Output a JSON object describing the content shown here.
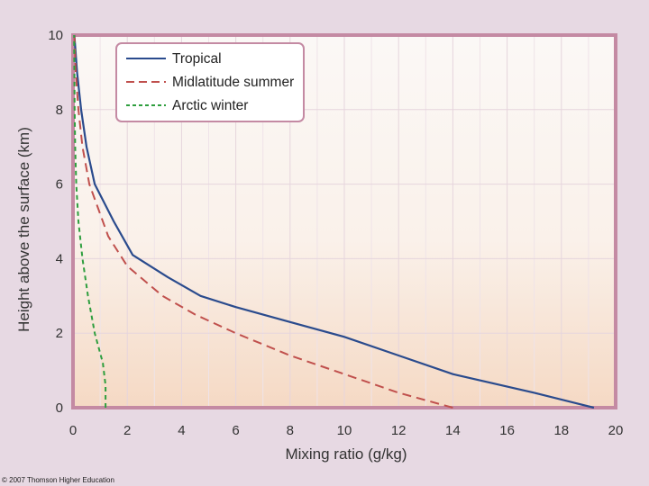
{
  "chart_data": {
    "type": "line",
    "title": "",
    "xlabel": "Mixing ratio (g/kg)",
    "ylabel": "Height above the surface (km)",
    "xlim": [
      0,
      20
    ],
    "ylim": [
      0,
      10
    ],
    "x_ticks": [
      "0",
      "2",
      "4",
      "6",
      "8",
      "10",
      "12",
      "14",
      "16",
      "18",
      "20"
    ],
    "y_ticks": [
      "0",
      "2",
      "4",
      "6",
      "8",
      "10"
    ],
    "grid": true,
    "legend_position": "top-left",
    "series": [
      {
        "name": "Tropical",
        "style": "solid",
        "color": "#2a4b8d",
        "points": [
          [
            19.2,
            0
          ],
          [
            17,
            0.4
          ],
          [
            14,
            0.9
          ],
          [
            12,
            1.4
          ],
          [
            10,
            1.9
          ],
          [
            8,
            2.3
          ],
          [
            6,
            2.7
          ],
          [
            4.7,
            3
          ],
          [
            3.5,
            3.5
          ],
          [
            2.2,
            4.1
          ],
          [
            1.5,
            5
          ],
          [
            0.8,
            6
          ],
          [
            0.5,
            7
          ],
          [
            0.3,
            8
          ],
          [
            0.15,
            9
          ],
          [
            0.05,
            10
          ]
        ]
      },
      {
        "name": "Midlatitude summer",
        "style": "dashed",
        "color": "#c0504d",
        "points": [
          [
            14,
            0
          ],
          [
            12,
            0.4
          ],
          [
            10,
            0.9
          ],
          [
            8,
            1.4
          ],
          [
            6,
            2
          ],
          [
            4.5,
            2.5
          ],
          [
            3.3,
            3
          ],
          [
            2,
            3.8
          ],
          [
            1.3,
            4.6
          ],
          [
            0.9,
            5.4
          ],
          [
            0.6,
            6
          ],
          [
            0.35,
            7
          ],
          [
            0.2,
            8
          ],
          [
            0.1,
            9
          ],
          [
            0.05,
            10
          ]
        ]
      },
      {
        "name": "Arctic winter",
        "style": "dashed",
        "color": "#2e9e3e",
        "points": [
          [
            1.2,
            0
          ],
          [
            1.2,
            0.6
          ],
          [
            1.1,
            1.2
          ],
          [
            0.8,
            2
          ],
          [
            0.55,
            3
          ],
          [
            0.35,
            4
          ],
          [
            0.2,
            5
          ],
          [
            0.12,
            6
          ],
          [
            0.08,
            7
          ],
          [
            0.06,
            8
          ],
          [
            0.05,
            9
          ],
          [
            0.04,
            10
          ]
        ]
      }
    ]
  },
  "credit": "© 2007 Thomson Higher Education"
}
